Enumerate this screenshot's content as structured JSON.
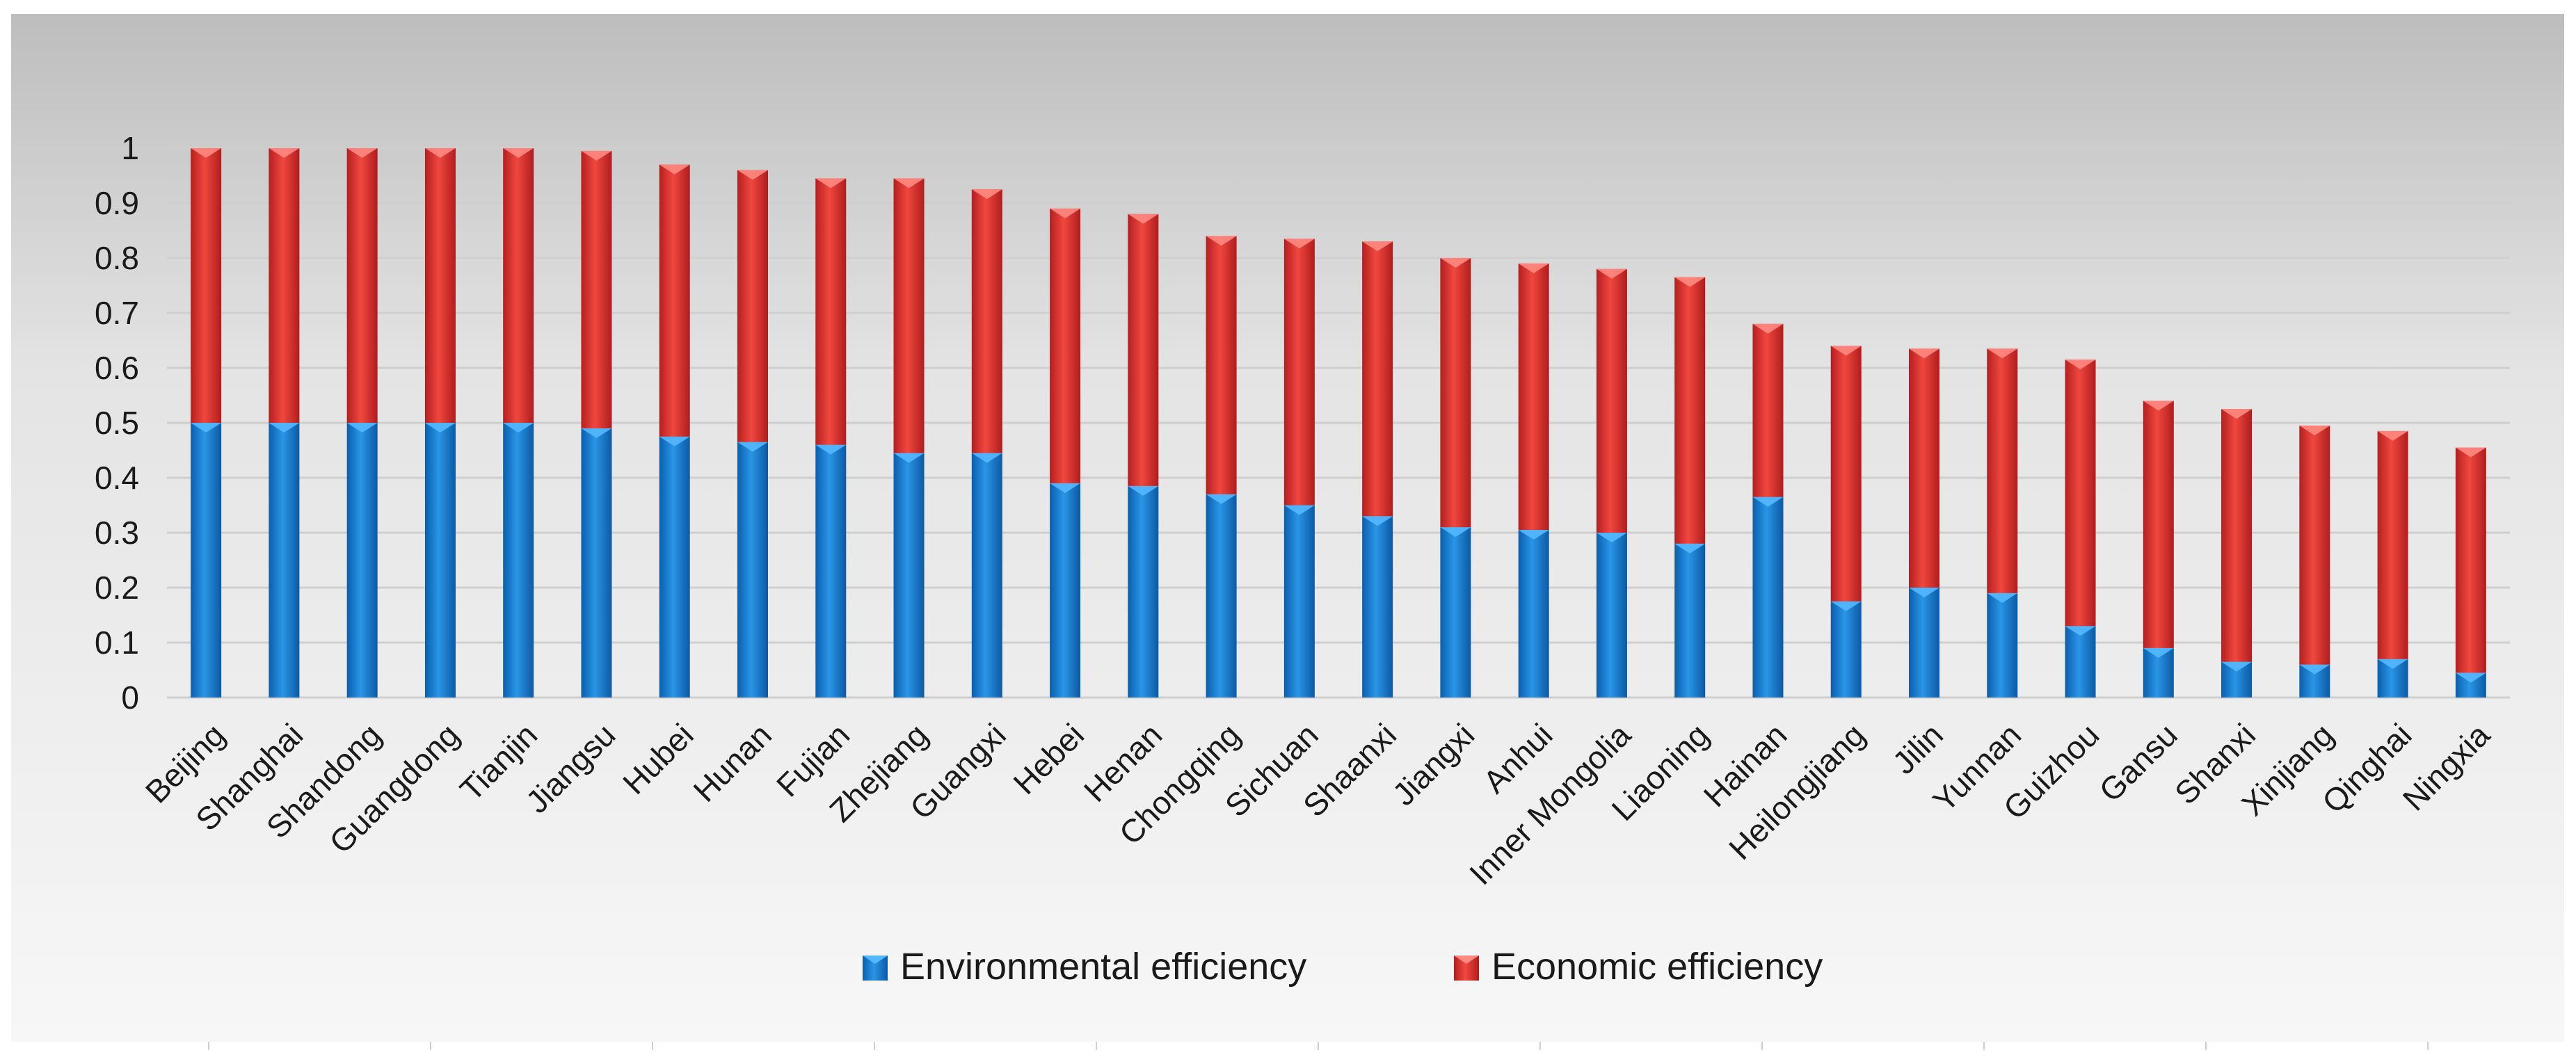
{
  "chart_data": {
    "type": "bar",
    "stacked": true,
    "title": "",
    "xlabel": "",
    "ylabel": "",
    "ylim": [
      0,
      1
    ],
    "yticks": [
      "0",
      "0.1",
      "0.2",
      "0.3",
      "0.4",
      "0.5",
      "0.6",
      "0.7",
      "0.8",
      "0.9",
      "1"
    ],
    "grid": true,
    "legend_position": "bottom-center",
    "categories": [
      "Beijing",
      "Shanghai",
      "Shandong",
      "Guangdong",
      "Tianjin",
      "Jiangsu",
      "Hubei",
      "Hunan",
      "Fujian",
      "Zhejiang",
      "Guangxi",
      "Hebei",
      "Henan",
      "Chongqing",
      "Sichuan",
      "Shaanxi",
      "Jiangxi",
      "Anhui",
      "Inner Mongolia",
      "Liaoning",
      "Hainan",
      "Heilongjiang",
      "Jilin",
      "Yunnan",
      "Guizhou",
      "Gansu",
      "Shanxi",
      "Xinjiang",
      "Qinghai",
      "Ningxia"
    ],
    "series": [
      {
        "name": "Environmental efficiency",
        "color": "#1a7fd4",
        "values": [
          0.5,
          0.5,
          0.5,
          0.5,
          0.5,
          0.49,
          0.475,
          0.465,
          0.46,
          0.445,
          0.445,
          0.39,
          0.385,
          0.37,
          0.35,
          0.33,
          0.31,
          0.305,
          0.3,
          0.28,
          0.365,
          0.175,
          0.2,
          0.19,
          0.13,
          0.09,
          0.065,
          0.06,
          0.07,
          0.045
        ]
      },
      {
        "name": "Economic efficiency",
        "color": "#e03a3a",
        "values": [
          0.5,
          0.5,
          0.5,
          0.5,
          0.5,
          0.505,
          0.495,
          0.495,
          0.485,
          0.5,
          0.48,
          0.5,
          0.495,
          0.47,
          0.485,
          0.5,
          0.49,
          0.485,
          0.48,
          0.485,
          0.315,
          0.465,
          0.435,
          0.445,
          0.485,
          0.45,
          0.46,
          0.435,
          0.415,
          0.41
        ]
      }
    ]
  }
}
